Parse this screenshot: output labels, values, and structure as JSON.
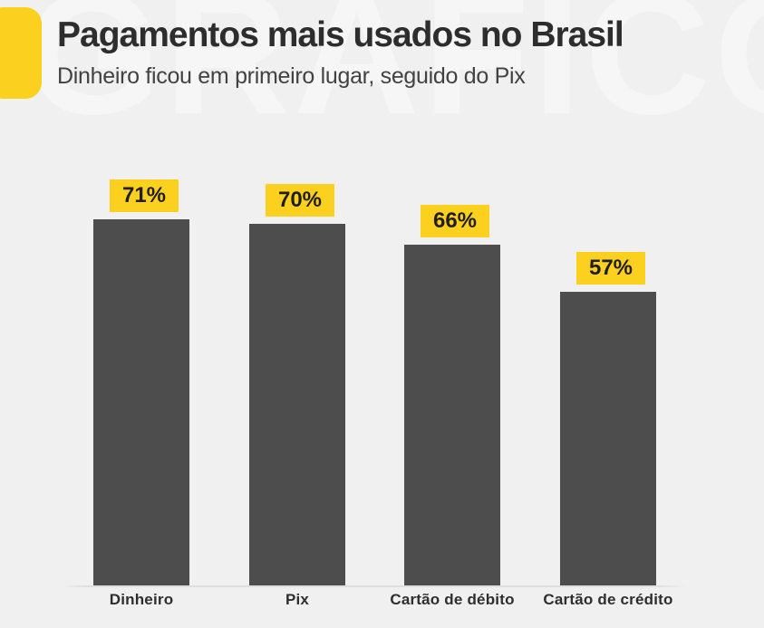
{
  "watermark": "GRÁFICO",
  "header": {
    "title": "Pagamentos mais usados no Brasil",
    "subtitle": "Dinheiro ficou em primeiro lugar, seguido do Pix"
  },
  "colors": {
    "background": "#f0f0f1",
    "watermark": "#f6f6f7",
    "bar": "#4d4d4d",
    "accent_yellow": "#fcd01e",
    "title_text": "#2d2d2e",
    "subtitle_text": "#424243",
    "category_label_text": "#2e2e2f",
    "badge_text": "#1f1f1f",
    "axis_line": "#dededf"
  },
  "chart_data": {
    "type": "bar",
    "title": "Pagamentos mais usados no Brasil",
    "subtitle": "Dinheiro ficou em primeiro lugar, seguido do Pix",
    "categories": [
      "Dinheiro",
      "Pix",
      "Cartão de débito",
      "Cartão de crédito"
    ],
    "values": [
      71,
      70,
      66,
      57
    ],
    "value_labels": [
      "71%",
      "70%",
      "66%",
      "57%"
    ],
    "xlabel": "",
    "ylabel": "",
    "ylim": [
      0,
      100
    ],
    "unit": "%",
    "grid": false,
    "legend": false,
    "bar_color": "#4d4d4d",
    "value_label_background": "#fcd01e"
  }
}
